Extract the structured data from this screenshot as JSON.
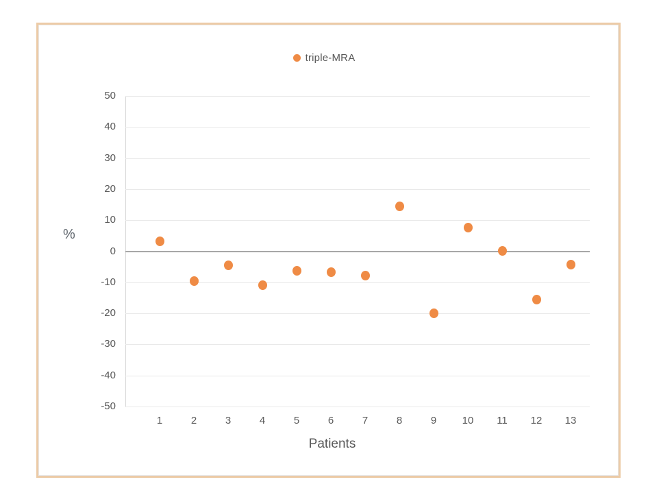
{
  "page": {
    "background": "#ffffff",
    "frame_color": "#ECCBA7"
  },
  "legend": {
    "marker_color": "#EF8B45"
  },
  "chart_data": {
    "type": "scatter",
    "title": "",
    "xlabel": "Patients",
    "ylabel": "%",
    "ylim": [
      -50,
      50
    ],
    "ytick_step": 10,
    "yticks": [
      50,
      40,
      30,
      20,
      10,
      0,
      -10,
      -20,
      -30,
      -40,
      -50
    ],
    "xticks": [
      1,
      2,
      3,
      4,
      5,
      6,
      7,
      8,
      9,
      10,
      11,
      12,
      13
    ],
    "grid": "horizontal",
    "legend_position": "top-center",
    "series": [
      {
        "name": "triple-MRA",
        "x": [
          1,
          2,
          3,
          4,
          5,
          6,
          7,
          8,
          9,
          10,
          11,
          12,
          13
        ],
        "values": [
          3.3,
          -9.7,
          -4.6,
          -10.9,
          -6.3,
          -6.8,
          -7.9,
          14.4,
          -19.9,
          7.7,
          0.2,
          -15.6,
          -4.4
        ]
      }
    ],
    "colors": {
      "marker": "#EF8B45",
      "text": "#595959",
      "gridline": "#e9e9e9",
      "zero_line": "#a7a7a7",
      "axis_line": "#d9d9d9"
    }
  }
}
